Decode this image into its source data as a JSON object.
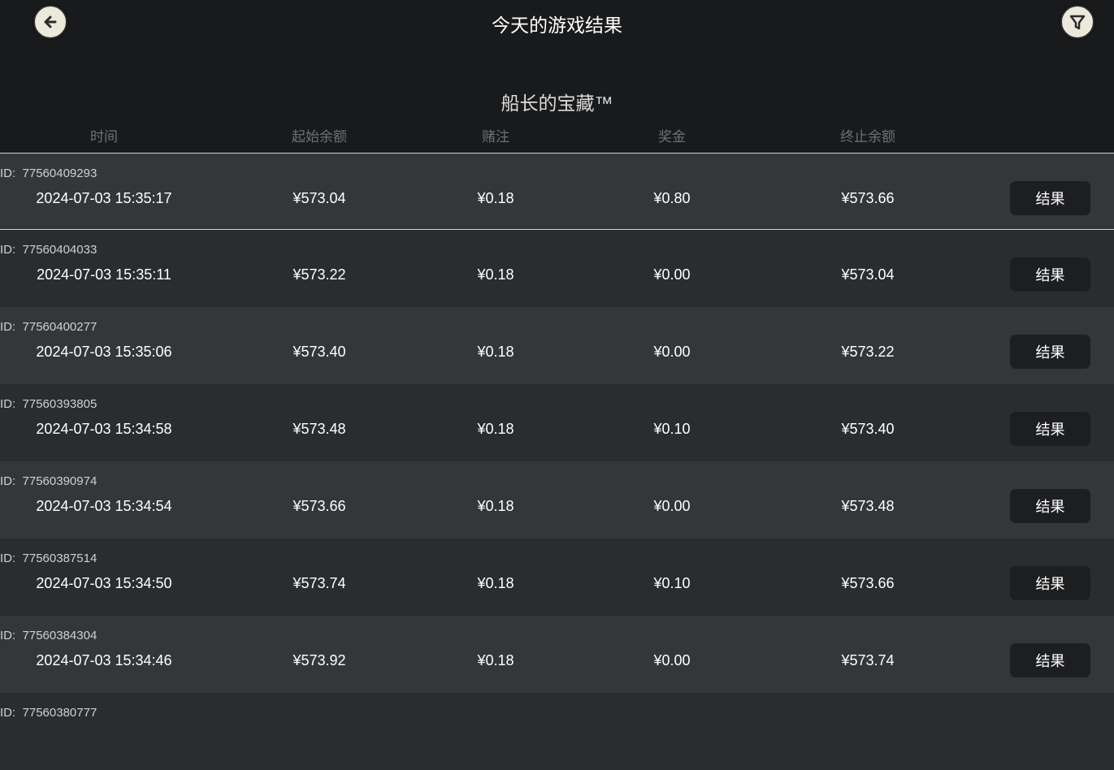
{
  "header": {
    "title": "今天的游戏结果",
    "back_icon": "arrow-left-icon",
    "filter_icon": "filter-icon"
  },
  "game_name": "船长的宝藏™",
  "columns": [
    "时间",
    "起始余额",
    "赌注",
    "奖金",
    "终止余额"
  ],
  "id_label": "ID:",
  "button_label": "结果",
  "rows": [
    {
      "id": "77560409293",
      "time": "2024-07-03  15:35:17",
      "start": "¥573.04",
      "bet": "¥0.18",
      "win": "¥0.80",
      "end": "¥573.66"
    },
    {
      "id": "77560404033",
      "time": "2024-07-03  15:35:11",
      "start": "¥573.22",
      "bet": "¥0.18",
      "win": "¥0.00",
      "end": "¥573.04"
    },
    {
      "id": "77560400277",
      "time": "2024-07-03  15:35:06",
      "start": "¥573.40",
      "bet": "¥0.18",
      "win": "¥0.00",
      "end": "¥573.22"
    },
    {
      "id": "77560393805",
      "time": "2024-07-03  15:34:58",
      "start": "¥573.48",
      "bet": "¥0.18",
      "win": "¥0.10",
      "end": "¥573.40"
    },
    {
      "id": "77560390974",
      "time": "2024-07-03  15:34:54",
      "start": "¥573.66",
      "bet": "¥0.18",
      "win": "¥0.00",
      "end": "¥573.48"
    },
    {
      "id": "77560387514",
      "time": "2024-07-03  15:34:50",
      "start": "¥573.74",
      "bet": "¥0.18",
      "win": "¥0.10",
      "end": "¥573.66"
    },
    {
      "id": "77560384304",
      "time": "2024-07-03  15:34:46",
      "start": "¥573.92",
      "bet": "¥0.18",
      "win": "¥0.00",
      "end": "¥573.74"
    },
    {
      "id": "77560380777"
    }
  ]
}
